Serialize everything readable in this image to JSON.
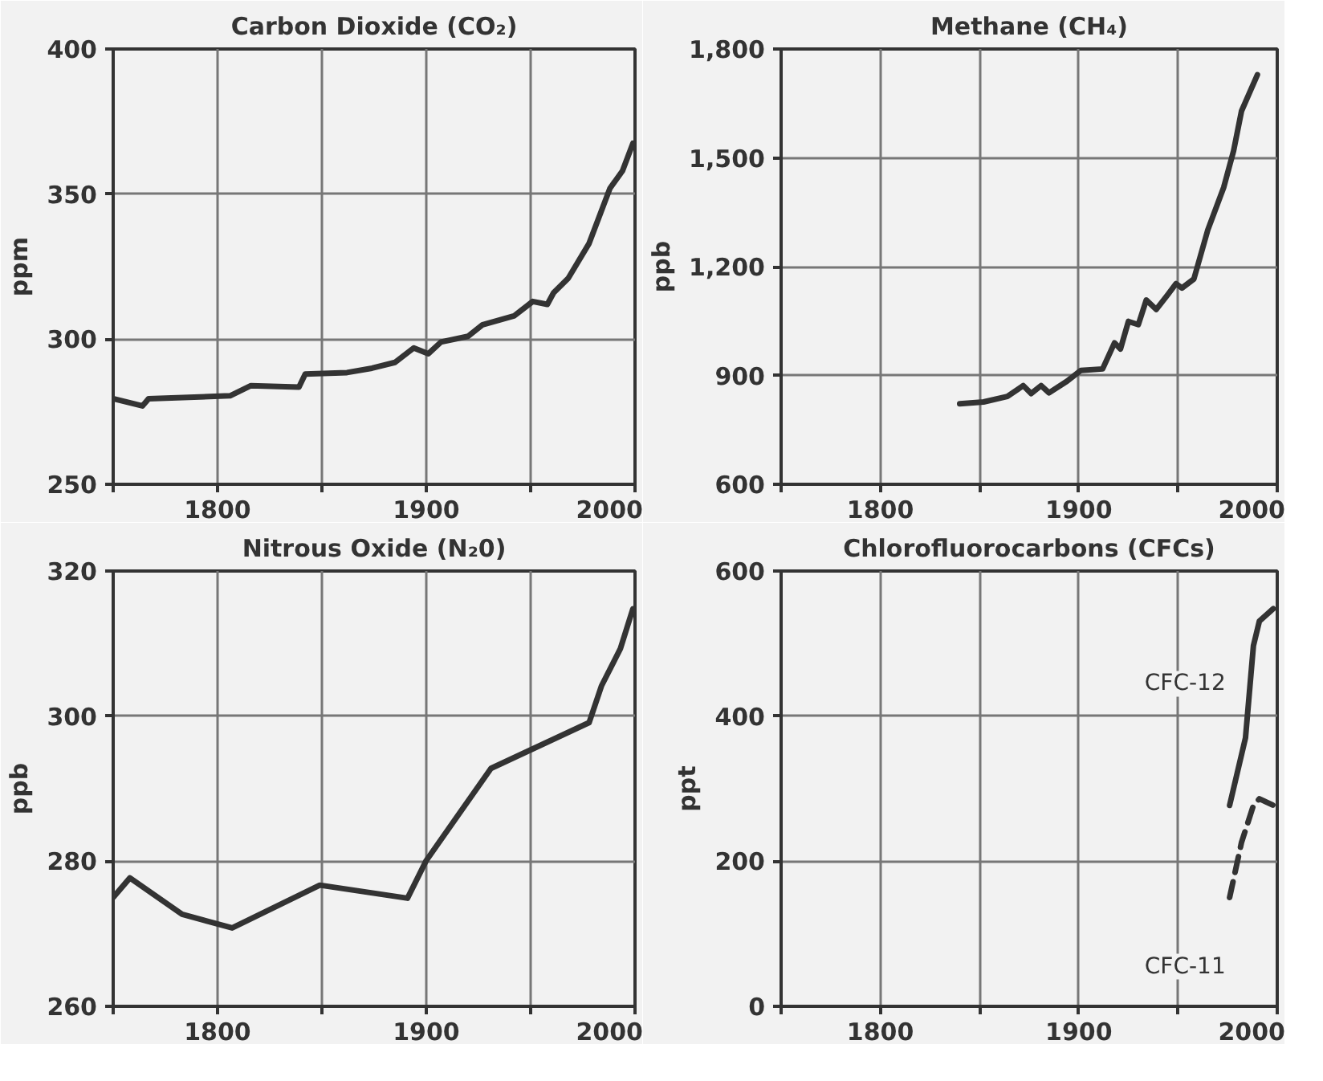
{
  "chart_data": [
    {
      "type": "line",
      "title": "Carbon Dioxide (CO₂)",
      "ylabel": "ppm",
      "xlim": [
        1750,
        2000
      ],
      "xticks": [
        {
          "value": 1750,
          "label": null
        },
        1800,
        {
          "value": 1850,
          "label": null
        },
        1900,
        {
          "value": 1950,
          "label": null
        },
        2000
      ],
      "ylim": [
        250,
        400
      ],
      "yticks": [
        250,
        300,
        350,
        400
      ],
      "grid": true,
      "series": [
        {
          "color": "#333333",
          "x": [
            1750,
            1764,
            1767,
            1806,
            1816,
            1839,
            1842,
            1862,
            1874,
            1885,
            1894,
            1901,
            1907,
            1920,
            1927,
            1942,
            1951,
            1958,
            1961,
            1968,
            1978,
            1988,
            1994,
            1999
          ],
          "values": [
            279.5,
            277,
            279.5,
            280.5,
            284,
            283.5,
            288,
            288.5,
            290,
            292,
            297,
            295,
            299,
            301,
            305,
            308,
            313,
            312,
            316,
            321,
            333,
            352,
            358,
            367.5
          ]
        }
      ]
    },
    {
      "type": "line",
      "title": "Methane (CH₄)",
      "ylabel": "ppb",
      "xlim": [
        1750,
        2000
      ],
      "xticks": [
        {
          "value": 1750,
          "label": null
        },
        1800,
        {
          "value": 1850,
          "label": null
        },
        1900,
        {
          "value": 1950,
          "label": null
        },
        2000
      ],
      "ylim": [
        600,
        1800
      ],
      "yticks": [
        600,
        900,
        {
          "value": 1200,
          "label": "1,200"
        },
        {
          "value": 1500,
          "label": "1,500"
        },
        {
          "value": 1800,
          "label": "1,800"
        }
      ],
      "grid": true,
      "series": [
        {
          "color": "#333333",
          "x": [
            1840,
            1852,
            1864,
            1872,
            1876,
            1881,
            1885,
            1894,
            1901,
            1912,
            1918,
            1921,
            1925,
            1930,
            1934,
            1939,
            1945,
            1949,
            1952,
            1958,
            1965,
            1973,
            1978,
            1982,
            1990
          ],
          "values": [
            822,
            827,
            842,
            872,
            850,
            872,
            852,
            884,
            914,
            918,
            990,
            973,
            1049,
            1040,
            1108,
            1082,
            1124,
            1153,
            1141,
            1166,
            1301,
            1418,
            1519,
            1629,
            1729
          ]
        }
      ]
    },
    {
      "type": "line",
      "title": "Nitrous Oxide (N₂0)",
      "ylabel": "ppb",
      "xlim": [
        1750,
        2000
      ],
      "xticks": [
        {
          "value": 1750,
          "label": null
        },
        1800,
        {
          "value": 1850,
          "label": null
        },
        1900,
        {
          "value": 1950,
          "label": null
        },
        2000
      ],
      "ylim": [
        260,
        320
      ],
      "yticks": [
        260,
        280,
        300,
        320
      ],
      "grid": true,
      "series": [
        {
          "color": "#333333",
          "x": [
            1750,
            1758,
            1783,
            1807,
            1849,
            1891,
            1900,
            1931,
            1978,
            1984,
            1993,
            1999
          ],
          "values": [
            275,
            277.7,
            272.7,
            270.8,
            276.7,
            274.9,
            280.1,
            292.8,
            299.1,
            304.2,
            309.3,
            314.8
          ]
        }
      ]
    },
    {
      "type": "line",
      "title": "Chlorofluorocarbons (CFCs)",
      "ylabel": "ppt",
      "xlim": [
        1750,
        2000
      ],
      "xticks": [
        {
          "value": 1750,
          "label": null
        },
        1800,
        {
          "value": 1850,
          "label": null
        },
        1900,
        {
          "value": 1950,
          "label": null
        },
        2000
      ],
      "ylim": [
        0,
        600
      ],
      "yticks": [
        0,
        200,
        400,
        600
      ],
      "grid": true,
      "series": [
        {
          "name": "CFC-12",
          "color": "#333333",
          "line_style": "solid",
          "x": [
            1976,
            1984,
            1988,
            1991,
            1998
          ],
          "values": [
            277,
            370,
            497,
            531,
            548
          ]
        },
        {
          "name": "CFC-11",
          "color": "#333333",
          "line_style": "dashed",
          "x": [
            1976,
            1982,
            1988,
            1991,
            1998
          ],
          "values": [
            150,
            226,
            277,
            286,
            277
          ]
        }
      ]
    }
  ]
}
